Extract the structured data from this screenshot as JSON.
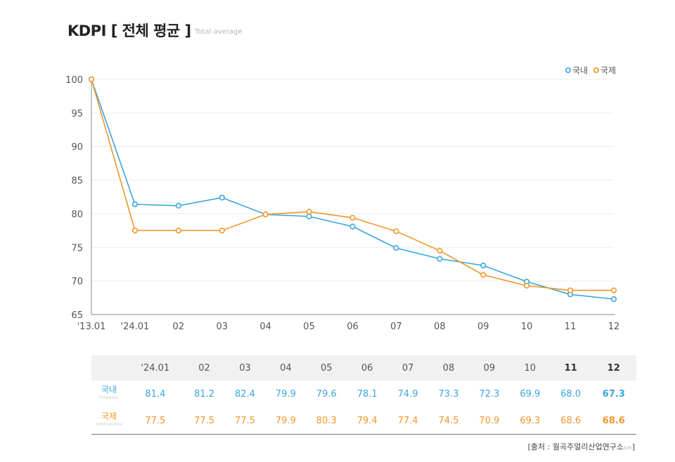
{
  "header": {
    "title": "KDPI [ 전체 평균 ]",
    "subtitle": "Total average"
  },
  "chart_data": {
    "type": "line",
    "x": [
      "'13.01",
      "'24.01",
      "02",
      "03",
      "04",
      "05",
      "06",
      "07",
      "08",
      "09",
      "10",
      "11",
      "12"
    ],
    "series": [
      {
        "name": "국내",
        "color": "#3aa6dd",
        "values": [
          100,
          81.4,
          81.2,
          82.4,
          79.9,
          79.6,
          78.1,
          74.9,
          73.3,
          72.3,
          69.9,
          68.0,
          67.3
        ]
      },
      {
        "name": "국제",
        "color": "#f0962a",
        "values": [
          100,
          77.5,
          77.5,
          77.5,
          79.9,
          80.3,
          79.4,
          77.4,
          74.5,
          70.9,
          69.3,
          68.6,
          68.6
        ]
      }
    ],
    "ylim": [
      65,
      100
    ],
    "yticks": [
      65,
      70,
      75,
      80,
      85,
      90,
      95,
      100
    ],
    "grid": true,
    "legend": "top-right"
  },
  "table": {
    "headers": [
      "'24.01",
      "02",
      "03",
      "04",
      "05",
      "06",
      "07",
      "08",
      "09",
      "10",
      "11",
      "12"
    ],
    "rows": [
      {
        "label": "국내",
        "label_en": "Domestic",
        "values": [
          "81.4",
          "81.2",
          "82.4",
          "79.9",
          "79.6",
          "78.1",
          "74.9",
          "73.3",
          "72.3",
          "69.9",
          "68.0",
          "67.3"
        ]
      },
      {
        "label": "국제",
        "label_en": "International",
        "values": [
          "77.5",
          "77.5",
          "77.5",
          "79.9",
          "80.3",
          "79.4",
          "77.4",
          "74.5",
          "70.9",
          "69.3",
          "68.6",
          "68.6"
        ]
      }
    ]
  },
  "source": {
    "text": "[출처 : 월곡주얼리산업연구소",
    "small": "KJRI",
    "close": "]"
  }
}
